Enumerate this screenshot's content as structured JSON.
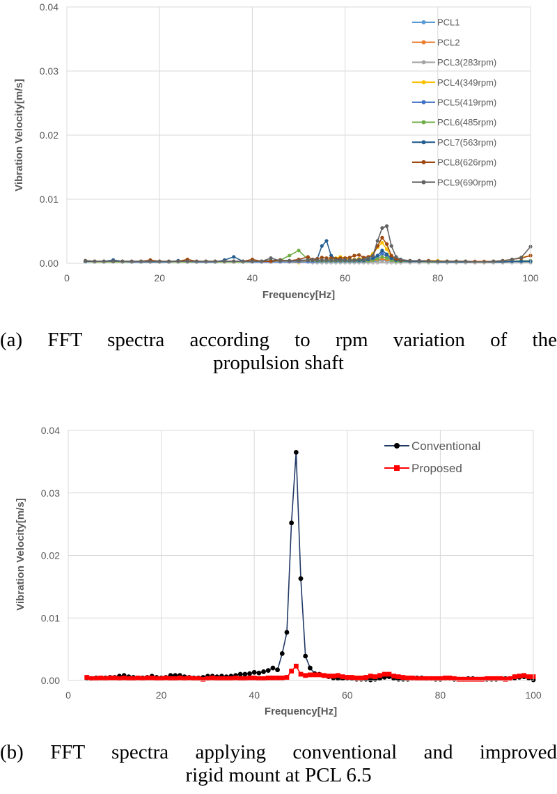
{
  "chart_data": [
    {
      "type": "line",
      "xlabel": "Frequency[Hz]",
      "ylabel": "Vibration Velocity[m/s]",
      "xlim": [
        0,
        100
      ],
      "ylim": [
        0,
        0.04
      ],
      "xticks": [
        "0",
        "20",
        "40",
        "60",
        "80",
        "100"
      ],
      "yticks": [
        "0.00",
        "0.01",
        "0.02",
        "0.03",
        "0.04"
      ],
      "grid": true,
      "legend": "top-right",
      "x": [
        4,
        6,
        8,
        10,
        12,
        14,
        16,
        18,
        20,
        22,
        24,
        26,
        28,
        30,
        32,
        34,
        36,
        38,
        40,
        42,
        44,
        46,
        48,
        50,
        52,
        53,
        54,
        55,
        56,
        57,
        58,
        59,
        60,
        61,
        62,
        63,
        64,
        65,
        66,
        67,
        68,
        69,
        70,
        71,
        72,
        74,
        76,
        78,
        80,
        82,
        84,
        86,
        88,
        90,
        92,
        94,
        96,
        98,
        100
      ],
      "series": [
        {
          "name": "PCL1",
          "color": "#5B9BD5",
          "values": [
            0.0003,
            0.0002,
            0.0002,
            0.0003,
            0.0002,
            0.0002,
            0.0002,
            0.0002,
            0.0002,
            0.0002,
            0.0002,
            0.0002,
            0.0002,
            0.0002,
            0.0002,
            0.0002,
            0.0002,
            0.0002,
            0.0002,
            0.0002,
            0.0002,
            0.0002,
            0.0002,
            0.0002,
            0.0002,
            0.0002,
            0.0002,
            0.0002,
            0.0002,
            0.0002,
            0.0002,
            0.0002,
            0.0002,
            0.0002,
            0.0002,
            0.0002,
            0.0002,
            0.0002,
            0.0003,
            0.0003,
            0.0005,
            0.0004,
            0.0003,
            0.0002,
            0.0002,
            0.0002,
            0.0002,
            0.0002,
            0.0002,
            0.0002,
            0.0002,
            0.0002,
            0.0002,
            0.0002,
            0.0002,
            0.0002,
            0.0002,
            0.0002,
            0.0002
          ]
        },
        {
          "name": "PCL2",
          "color": "#ED7D31",
          "values": [
            0.0004,
            0.0003,
            0.0003,
            0.0003,
            0.0003,
            0.0003,
            0.0003,
            0.0003,
            0.0003,
            0.0003,
            0.0003,
            0.0003,
            0.0003,
            0.0003,
            0.0003,
            0.0003,
            0.0003,
            0.0003,
            0.0003,
            0.0003,
            0.0003,
            0.0003,
            0.0003,
            0.0003,
            0.0003,
            0.0003,
            0.0003,
            0.0003,
            0.0003,
            0.0003,
            0.0003,
            0.0003,
            0.0003,
            0.0003,
            0.0003,
            0.0003,
            0.0003,
            0.0003,
            0.0004,
            0.0005,
            0.0007,
            0.0005,
            0.0004,
            0.0003,
            0.0003,
            0.0003,
            0.0003,
            0.0003,
            0.0003,
            0.0003,
            0.0003,
            0.0003,
            0.0003,
            0.0003,
            0.0003,
            0.0003,
            0.0003,
            0.0003,
            0.0003
          ]
        },
        {
          "name": "PCL3(283rpm)",
          "color": "#A5A5A5",
          "values": [
            0.0002,
            0.0002,
            0.0002,
            0.0002,
            0.0002,
            0.0002,
            0.0002,
            0.0002,
            0.0002,
            0.0002,
            0.0002,
            0.0002,
            0.0002,
            0.0002,
            0.0002,
            0.0002,
            0.0002,
            0.0002,
            0.0002,
            0.0002,
            0.0002,
            0.0002,
            0.0002,
            0.0002,
            0.0002,
            0.0001,
            0.0001,
            0.0001,
            0.0001,
            0.0001,
            0.0001,
            0.0001,
            0.0001,
            0.0001,
            0.0001,
            0.0001,
            0.0001,
            0.0001,
            0.0001,
            0.0001,
            0.0002,
            0.0001,
            0.0001,
            0.0001,
            0.0001,
            0.0001,
            0.0001,
            0.0001,
            0.0001,
            0.0001,
            0.0001,
            0.0001,
            0.0001,
            0.0001,
            0.0001,
            0.0001,
            0.0001,
            0.0001,
            0.0001
          ]
        },
        {
          "name": "PCL4(349rpm)",
          "color": "#FFC000",
          "values": [
            0.0004,
            0.0003,
            0.0002,
            0.0003,
            0.0003,
            0.0002,
            0.0003,
            0.0003,
            0.0002,
            0.0002,
            0.0003,
            0.0003,
            0.0002,
            0.0003,
            0.0003,
            0.0002,
            0.0002,
            0.0003,
            0.0003,
            0.0003,
            0.0003,
            0.0004,
            0.0002,
            0.0001,
            0.0003,
            0.0003,
            0.0004,
            0.0004,
            0.0005,
            0.0006,
            0.0008,
            0.001,
            0.0008,
            0.0006,
            0.0006,
            0.0007,
            0.0008,
            0.001,
            0.0015,
            0.0025,
            0.0032,
            0.0022,
            0.001,
            0.0006,
            0.0004,
            0.0004,
            0.0004,
            0.0004,
            0.0004,
            0.0003,
            0.0003,
            0.0003,
            0.0002,
            0.0002,
            0.0003,
            0.0004,
            0.0006,
            0.0009,
            0.0012
          ]
        },
        {
          "name": "PCL5(419rpm)",
          "color": "#4472C4",
          "values": [
            0.0003,
            0.0002,
            0.0002,
            0.0004,
            0.0002,
            0.0002,
            0.0002,
            0.0002,
            0.0002,
            0.0002,
            0.0003,
            0.0002,
            0.0002,
            0.0002,
            0.0002,
            0.0003,
            0.0003,
            0.0002,
            0.0002,
            0.0002,
            0.0002,
            0.0002,
            0.0002,
            0.0002,
            0.0002,
            0.0002,
            0.0002,
            0.0003,
            0.0003,
            0.0003,
            0.0003,
            0.0003,
            0.0003,
            0.0003,
            0.0003,
            0.0003,
            0.0003,
            0.0004,
            0.0006,
            0.001,
            0.0015,
            0.0011,
            0.0006,
            0.0004,
            0.0003,
            0.0003,
            0.0003,
            0.0002,
            0.0002,
            0.0002,
            0.0002,
            0.0002,
            0.0002,
            0.0002,
            0.0002,
            0.0002,
            0.0003,
            0.0003,
            0.0003
          ]
        },
        {
          "name": "PCL6(485rpm)",
          "color": "#70AD47",
          "values": [
            0.0003,
            0.0002,
            0.0002,
            0.0002,
            0.0002,
            0.0002,
            0.0002,
            0.0002,
            0.0002,
            0.0002,
            0.0002,
            0.0002,
            0.0002,
            0.0002,
            0.0002,
            0.0002,
            0.0002,
            0.0002,
            0.0003,
            0.0003,
            0.0004,
            0.0005,
            0.0012,
            0.002,
            0.0006,
            0.0005,
            0.0004,
            0.0004,
            0.0004,
            0.0004,
            0.0004,
            0.0004,
            0.0004,
            0.0004,
            0.0004,
            0.0004,
            0.0004,
            0.0004,
            0.0005,
            0.0007,
            0.001,
            0.0008,
            0.0005,
            0.0003,
            0.0003,
            0.0003,
            0.0003,
            0.0002,
            0.0002,
            0.0002,
            0.0002,
            0.0002,
            0.0002,
            0.0002,
            0.0002,
            0.0002,
            0.0003,
            0.0004,
            0.0004
          ]
        },
        {
          "name": "PCL7(563rpm)",
          "color": "#255E91",
          "values": [
            0.0003,
            0.0003,
            0.0003,
            0.0005,
            0.0003,
            0.0002,
            0.0002,
            0.0002,
            0.0002,
            0.0002,
            0.0004,
            0.0003,
            0.0002,
            0.0002,
            0.0002,
            0.0005,
            0.001,
            0.0003,
            0.0003,
            0.0003,
            0.0004,
            0.0005,
            0.0004,
            0.0005,
            0.0005,
            0.0006,
            0.0007,
            0.0027,
            0.0035,
            0.0012,
            0.0007,
            0.0006,
            0.0005,
            0.0005,
            0.0005,
            0.0005,
            0.0005,
            0.0006,
            0.0008,
            0.0012,
            0.002,
            0.0014,
            0.0008,
            0.0005,
            0.0004,
            0.0003,
            0.0003,
            0.0003,
            0.0002,
            0.0002,
            0.0002,
            0.0002,
            0.0002,
            0.0002,
            0.0002,
            0.0002,
            0.0003,
            0.0003,
            0.0003
          ]
        },
        {
          "name": "PCL8(626rpm)",
          "color": "#9E480E",
          "values": [
            0.0004,
            0.0003,
            0.0003,
            0.0003,
            0.0003,
            0.0003,
            0.0003,
            0.0005,
            0.0003,
            0.0003,
            0.0003,
            0.0006,
            0.0003,
            0.0003,
            0.0003,
            0.0003,
            0.0003,
            0.0003,
            0.0006,
            0.0003,
            0.0003,
            0.0005,
            0.0004,
            0.0006,
            0.001,
            0.0006,
            0.0007,
            0.0009,
            0.0008,
            0.0008,
            0.0007,
            0.0008,
            0.0008,
            0.0009,
            0.0012,
            0.0013,
            0.0009,
            0.001,
            0.0012,
            0.0027,
            0.004,
            0.003,
            0.0012,
            0.0007,
            0.0005,
            0.0004,
            0.0004,
            0.0004,
            0.0003,
            0.0003,
            0.0003,
            0.0003,
            0.0002,
            0.0002,
            0.0003,
            0.0004,
            0.0006,
            0.0008,
            0.0012
          ]
        },
        {
          "name": "PCL9(690rpm)",
          "color": "#636363",
          "values": [
            0.0004,
            0.0003,
            0.0003,
            0.0003,
            0.0003,
            0.0003,
            0.0003,
            0.0003,
            0.0003,
            0.0003,
            0.0003,
            0.0003,
            0.0003,
            0.0003,
            0.0003,
            0.0003,
            0.0003,
            0.0003,
            0.0003,
            0.0003,
            0.0008,
            0.0004,
            0.0004,
            0.0004,
            0.0005,
            0.0005,
            0.0005,
            0.0005,
            0.0005,
            0.0005,
            0.0005,
            0.0005,
            0.0005,
            0.0005,
            0.0005,
            0.0006,
            0.0006,
            0.0008,
            0.0012,
            0.0035,
            0.0055,
            0.0058,
            0.0027,
            0.001,
            0.0006,
            0.0004,
            0.0004,
            0.0003,
            0.0003,
            0.0003,
            0.0003,
            0.0003,
            0.0002,
            0.0002,
            0.0003,
            0.0004,
            0.0006,
            0.0009,
            0.0026
          ]
        }
      ]
    },
    {
      "type": "line",
      "xlabel": "Frequency[Hz]",
      "ylabel": "Vibration Velocity[m/s]",
      "xlim": [
        0,
        100
      ],
      "ylim": [
        0,
        0.04
      ],
      "xticks": [
        "0",
        "20",
        "40",
        "60",
        "80",
        "100"
      ],
      "yticks": [
        "0.00",
        "0.01",
        "0.02",
        "0.03",
        "0.04"
      ],
      "grid": true,
      "legend": "top-right",
      "x": [
        4,
        5,
        6,
        7,
        8,
        9,
        10,
        11,
        12,
        13,
        14,
        15,
        16,
        17,
        18,
        19,
        20,
        21,
        22,
        23,
        24,
        25,
        26,
        27,
        28,
        29,
        30,
        31,
        32,
        33,
        34,
        35,
        36,
        37,
        38,
        39,
        40,
        41,
        42,
        43,
        44,
        45,
        46,
        47,
        48,
        49,
        50,
        51,
        52,
        53,
        54,
        55,
        56,
        57,
        58,
        59,
        60,
        61,
        62,
        63,
        64,
        65,
        66,
        67,
        68,
        69,
        70,
        71,
        72,
        73,
        74,
        75,
        76,
        77,
        78,
        79,
        80,
        81,
        82,
        83,
        84,
        85,
        86,
        87,
        88,
        89,
        90,
        91,
        92,
        93,
        94,
        95,
        96,
        97,
        98,
        99,
        100
      ],
      "series": [
        {
          "name": "Conventional",
          "color": "#1F3864",
          "marker": "circle",
          "marker_color": "#000000",
          "values": [
            0.0004,
            0.0003,
            0.0004,
            0.0003,
            0.0004,
            0.0005,
            0.0005,
            0.0007,
            0.0008,
            0.0006,
            0.0005,
            0.0004,
            0.0004,
            0.0005,
            0.0007,
            0.0005,
            0.0004,
            0.0005,
            0.0008,
            0.0008,
            0.0008,
            0.0006,
            0.0005,
            0.0004,
            0.0004,
            0.0005,
            0.0007,
            0.0007,
            0.0006,
            0.0007,
            0.0006,
            0.0007,
            0.0008,
            0.001,
            0.001,
            0.0011,
            0.0013,
            0.0012,
            0.0014,
            0.0016,
            0.002,
            0.0017,
            0.0043,
            0.0077,
            0.0252,
            0.0365,
            0.0163,
            0.0039,
            0.002,
            0.0011,
            0.001,
            0.0008,
            0.0006,
            0.0004,
            0.0003,
            0.0003,
            0.0004,
            0.0003,
            0.0002,
            0.0002,
            0.0002,
            0.0001,
            0.0002,
            0.0003,
            0.0005,
            0.0006,
            0.0003,
            0.0002,
            0.0002,
            0.0002,
            0.0003,
            0.0004,
            0.0004,
            0.0003,
            0.0003,
            0.0002,
            0.0002,
            0.0003,
            0.0003,
            0.0002,
            0.0002,
            0.0002,
            0.0003,
            0.0003,
            0.0002,
            0.0002,
            0.0002,
            0.0002,
            0.0002,
            0.0003,
            0.0003,
            0.0003,
            0.0004,
            0.0005,
            0.0006,
            0.0004,
            0.0001
          ]
        },
        {
          "name": "Proposed",
          "color": "#FF0000",
          "marker": "square",
          "marker_color": "#FF0000",
          "values": [
            0.0005,
            0.0003,
            0.0003,
            0.0004,
            0.0003,
            0.0004,
            0.0004,
            0.0003,
            0.0004,
            0.0003,
            0.0003,
            0.0004,
            0.0003,
            0.0004,
            0.0004,
            0.0003,
            0.0003,
            0.0004,
            0.0003,
            0.0003,
            0.0004,
            0.0003,
            0.0004,
            0.0003,
            0.0003,
            0.0002,
            0.0003,
            0.0004,
            0.0003,
            0.0003,
            0.0003,
            0.0003,
            0.0004,
            0.0003,
            0.0003,
            0.0004,
            0.0004,
            0.0003,
            0.0003,
            0.0004,
            0.0004,
            0.0004,
            0.0004,
            0.0005,
            0.0015,
            0.0023,
            0.001,
            0.0008,
            0.0009,
            0.0009,
            0.0009,
            0.0008,
            0.0007,
            0.0007,
            0.0008,
            0.0006,
            0.0005,
            0.0005,
            0.0004,
            0.0004,
            0.0005,
            0.0007,
            0.0006,
            0.0008,
            0.001,
            0.001,
            0.0007,
            0.0006,
            0.0005,
            0.0004,
            0.0004,
            0.0003,
            0.0003,
            0.0003,
            0.0003,
            0.0003,
            0.0003,
            0.0004,
            0.0004,
            0.0003,
            0.0002,
            0.0002,
            0.0002,
            0.0002,
            0.0002,
            0.0002,
            0.0003,
            0.0003,
            0.0003,
            0.0003,
            0.0002,
            0.0003,
            0.0006,
            0.0007,
            0.0008,
            0.0006,
            0.0006
          ]
        }
      ]
    }
  ],
  "captions": {
    "a_line1": "(a) FFT spectra according to rpm variation of the",
    "a_line2": "propulsion shaft",
    "b_line1": "(b) FFT spectra applying conventional and improved",
    "b_line2": "rigid mount at PCL 6.5"
  }
}
